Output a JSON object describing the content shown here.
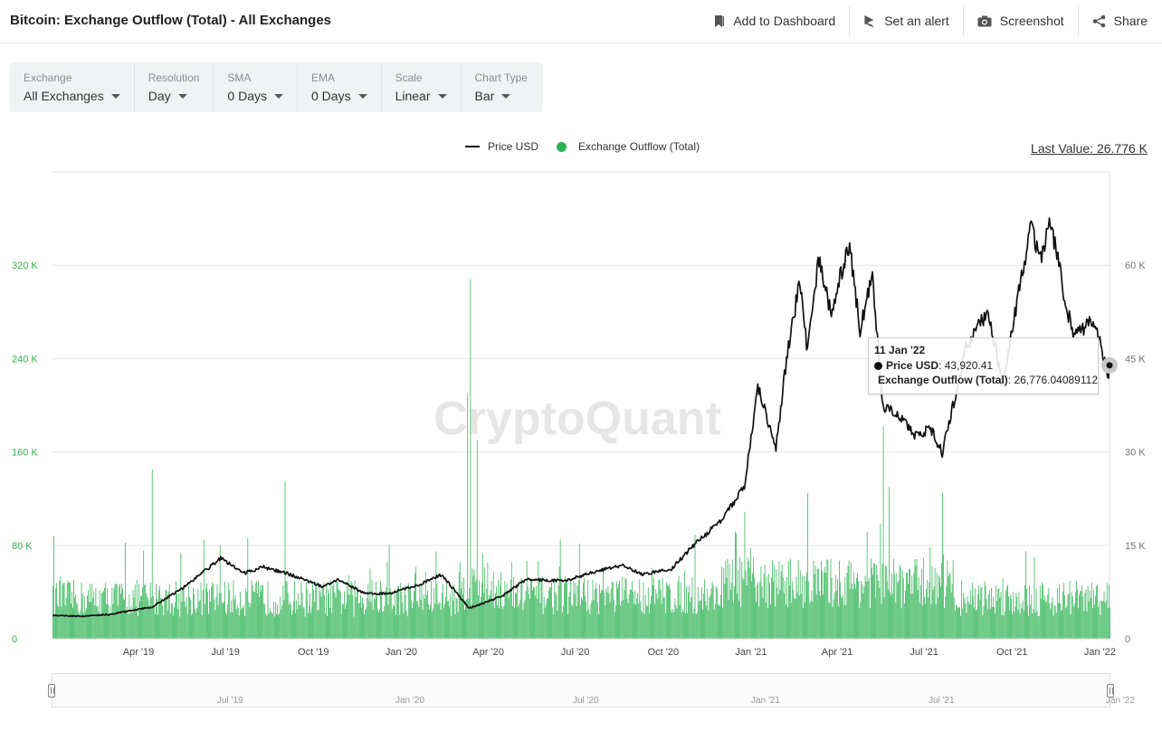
{
  "header": {
    "title": "Bitcoin: Exchange Outflow (Total) - All Exchanges",
    "actions": [
      {
        "label": "Add to Dashboard",
        "icon": "bookmark-icon"
      },
      {
        "label": "Set an alert",
        "icon": "bell-icon"
      },
      {
        "label": "Screenshot",
        "icon": "camera-icon"
      },
      {
        "label": "Share",
        "icon": "share-icon"
      }
    ]
  },
  "controls": [
    {
      "label": "Exchange",
      "value": "All Exchanges"
    },
    {
      "label": "Resolution",
      "value": "Day"
    },
    {
      "label": "SMA",
      "value": "0 Days"
    },
    {
      "label": "EMA",
      "value": "0 Days"
    },
    {
      "label": "Scale",
      "value": "Linear"
    },
    {
      "label": "Chart Type",
      "value": "Bar"
    }
  ],
  "legend": {
    "price": "Price USD",
    "outflow": "Exchange Outflow (Total)"
  },
  "last_value": "Last Value: 26.776 K",
  "watermark": "CryptoQuant",
  "tooltip": {
    "date": "11 Jan '22",
    "price_name": "Price USD",
    "price_value": ": 43,920.41",
    "outflow_name": "Exchange Outflow (Total)",
    "outflow_value": ": 26,776.04089112"
  },
  "navigator": {
    "labels": [
      "Jul '19",
      "Jan '20",
      "Jul '20",
      "Jan '21",
      "Jul '21",
      "Jan '22"
    ]
  },
  "colors": {
    "outflow": "#2db352",
    "price": "#111111",
    "grid": "#e6e6e6"
  },
  "chart_data": {
    "type": "bar",
    "title": "Bitcoin: Exchange Outflow (Total) - All Exchanges",
    "x_start": "2019-01-01",
    "x_end": "2022-01-11",
    "x_ticks": [
      {
        "date": "2019-04-01",
        "label": "Apr '19"
      },
      {
        "date": "2019-07-01",
        "label": "Jul '19"
      },
      {
        "date": "2019-10-01",
        "label": "Oct '19"
      },
      {
        "date": "2020-01-01",
        "label": "Jan '20"
      },
      {
        "date": "2020-04-01",
        "label": "Apr '20"
      },
      {
        "date": "2020-07-01",
        "label": "Jul '20"
      },
      {
        "date": "2020-10-01",
        "label": "Oct '20"
      },
      {
        "date": "2021-01-01",
        "label": "Jan '21"
      },
      {
        "date": "2021-04-01",
        "label": "Apr '21"
      },
      {
        "date": "2021-07-01",
        "label": "Jul '21"
      },
      {
        "date": "2021-10-01",
        "label": "Oct '21"
      },
      {
        "date": "2022-01-01",
        "label": "Jan '22"
      }
    ],
    "y_left": {
      "name": "Exchange Outflow (Total)",
      "min": 0,
      "max": 400000,
      "ticks": [
        0,
        80000,
        160000,
        240000,
        320000
      ],
      "tick_labels": [
        "0",
        "80 K",
        "160 K",
        "240 K",
        "320 K"
      ]
    },
    "y_right": {
      "name": "Price USD",
      "min": 0,
      "max": 75000,
      "ticks": [
        0,
        15000,
        30000,
        45000,
        60000
      ],
      "tick_labels": [
        "0",
        "15 K",
        "30 K",
        "45 K",
        "60 K"
      ]
    },
    "outflow_key_points": [
      {
        "date": "2019-01-01",
        "value": 45000
      },
      {
        "date": "2019-04-15",
        "value": 145000
      },
      {
        "date": "2019-06-25",
        "value": 80000
      },
      {
        "date": "2019-09-01",
        "value": 135000
      },
      {
        "date": "2019-12-01",
        "value": 50000
      },
      {
        "date": "2020-03-10",
        "value": 210000
      },
      {
        "date": "2020-03-13",
        "value": 308000
      },
      {
        "date": "2020-03-20",
        "value": 170000
      },
      {
        "date": "2020-06-15",
        "value": 85000
      },
      {
        "date": "2020-12-20",
        "value": 70000
      },
      {
        "date": "2021-03-01",
        "value": 125000
      },
      {
        "date": "2021-05-19",
        "value": 182000
      },
      {
        "date": "2021-05-25",
        "value": 130000
      },
      {
        "date": "2021-07-20",
        "value": 125000
      },
      {
        "date": "2021-10-15",
        "value": 75000
      },
      {
        "date": "2022-01-11",
        "value": 26776.04089112
      }
    ],
    "price_series": [
      {
        "date": "2019-01-01",
        "value": 3800
      },
      {
        "date": "2019-02-01",
        "value": 3600
      },
      {
        "date": "2019-03-01",
        "value": 3900
      },
      {
        "date": "2019-04-15",
        "value": 5100
      },
      {
        "date": "2019-05-15",
        "value": 7900
      },
      {
        "date": "2019-06-26",
        "value": 12900
      },
      {
        "date": "2019-07-20",
        "value": 10500
      },
      {
        "date": "2019-08-10",
        "value": 11500
      },
      {
        "date": "2019-09-05",
        "value": 10400
      },
      {
        "date": "2019-10-10",
        "value": 8400
      },
      {
        "date": "2019-10-26",
        "value": 9500
      },
      {
        "date": "2019-11-25",
        "value": 7200
      },
      {
        "date": "2019-12-20",
        "value": 7300
      },
      {
        "date": "2020-01-20",
        "value": 8700
      },
      {
        "date": "2020-02-12",
        "value": 10300
      },
      {
        "date": "2020-03-12",
        "value": 4900
      },
      {
        "date": "2020-04-15",
        "value": 6800
      },
      {
        "date": "2020-05-10",
        "value": 9500
      },
      {
        "date": "2020-06-20",
        "value": 9300
      },
      {
        "date": "2020-07-27",
        "value": 11000
      },
      {
        "date": "2020-08-20",
        "value": 11800
      },
      {
        "date": "2020-09-10",
        "value": 10300
      },
      {
        "date": "2020-10-10",
        "value": 11300
      },
      {
        "date": "2020-11-05",
        "value": 15500
      },
      {
        "date": "2020-12-01",
        "value": 19000
      },
      {
        "date": "2020-12-25",
        "value": 24500
      },
      {
        "date": "2021-01-08",
        "value": 40500
      },
      {
        "date": "2021-01-27",
        "value": 30500
      },
      {
        "date": "2021-02-08",
        "value": 46000
      },
      {
        "date": "2021-02-21",
        "value": 57500
      },
      {
        "date": "2021-03-01",
        "value": 46000
      },
      {
        "date": "2021-03-13",
        "value": 61200
      },
      {
        "date": "2021-03-25",
        "value": 52500
      },
      {
        "date": "2021-04-14",
        "value": 63500
      },
      {
        "date": "2021-04-25",
        "value": 49500
      },
      {
        "date": "2021-05-08",
        "value": 58500
      },
      {
        "date": "2021-05-19",
        "value": 37000
      },
      {
        "date": "2021-06-01",
        "value": 36500
      },
      {
        "date": "2021-06-22",
        "value": 32500
      },
      {
        "date": "2021-07-08",
        "value": 33800
      },
      {
        "date": "2021-07-20",
        "value": 29800
      },
      {
        "date": "2021-08-14",
        "value": 47000
      },
      {
        "date": "2021-09-06",
        "value": 52500
      },
      {
        "date": "2021-09-21",
        "value": 40700
      },
      {
        "date": "2021-10-20",
        "value": 66000
      },
      {
        "date": "2021-11-01",
        "value": 61000
      },
      {
        "date": "2021-11-10",
        "value": 67500
      },
      {
        "date": "2021-11-26",
        "value": 54000
      },
      {
        "date": "2021-12-04",
        "value": 49000
      },
      {
        "date": "2021-12-27",
        "value": 51000
      },
      {
        "date": "2022-01-10",
        "value": 41800
      },
      {
        "date": "2022-01-11",
        "value": 43920.41
      }
    ]
  }
}
